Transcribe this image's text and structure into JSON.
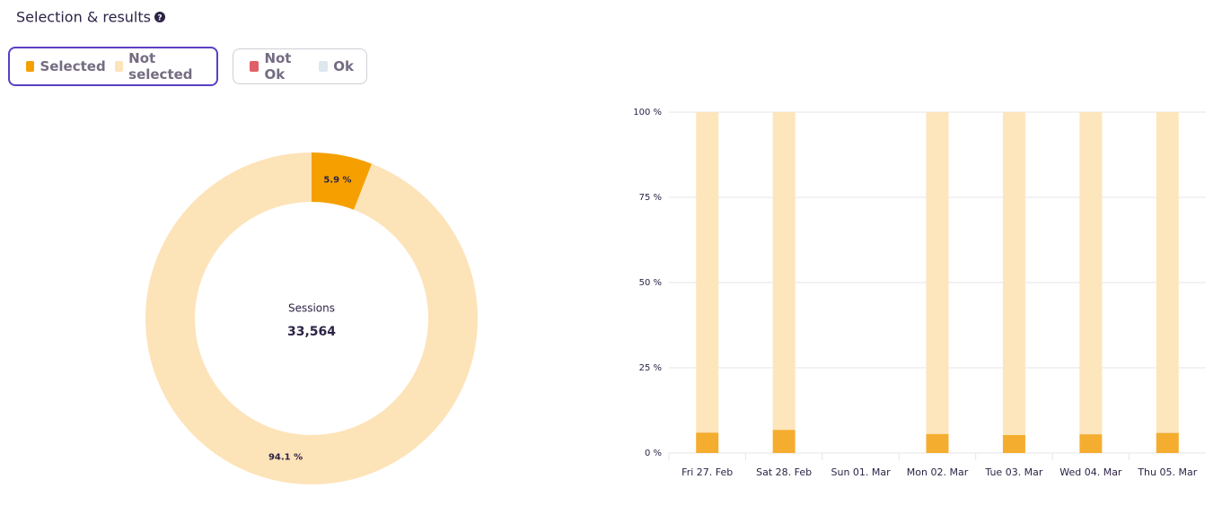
{
  "header": {
    "title": "Selection & results"
  },
  "toggles": [
    {
      "items": [
        {
          "name": "Selected",
          "color": "#f5a000"
        },
        {
          "name": "Not selected",
          "color": "#fde3b8"
        }
      ]
    },
    {
      "items": [
        {
          "name": "Not Ok",
          "color": "#e06068"
        },
        {
          "name": "Ok",
          "color": "#dde7ee"
        }
      ]
    }
  ],
  "chart_data": [
    {
      "type": "pie",
      "donut": true,
      "center_label": "Sessions",
      "center_value": "33,564",
      "values": [
        5.9,
        94.1
      ],
      "value_labels": [
        "5.9 %",
        "94.1 %"
      ],
      "colors": [
        "#f5a000",
        "#fde3b8"
      ]
    },
    {
      "type": "bar",
      "stacked": true,
      "categories": [
        "Fri 27. Feb",
        "Sat 28. Feb",
        "Sun 01. Mar",
        "Mon 02. Mar",
        "Tue 03. Mar",
        "Wed 04. Mar",
        "Thu 05. Mar"
      ],
      "series": [
        {
          "color": "#f5ad2f",
          "values": [
            6,
            6.8,
            null,
            5.6,
            5.3,
            5.5,
            5.9
          ]
        },
        {
          "color": "#fde5bc",
          "values": [
            94,
            93.2,
            null,
            94.4,
            94.7,
            94.5,
            94.1
          ]
        }
      ],
      "ylim": [
        0,
        100
      ],
      "yticks": [
        {
          "value": 0,
          "label": "0 %"
        },
        {
          "value": 25,
          "label": "25 %"
        },
        {
          "value": 50,
          "label": "50 %"
        },
        {
          "value": 75,
          "label": "75 %"
        },
        {
          "value": 100,
          "label": "100 %"
        }
      ],
      "grid": true
    }
  ]
}
